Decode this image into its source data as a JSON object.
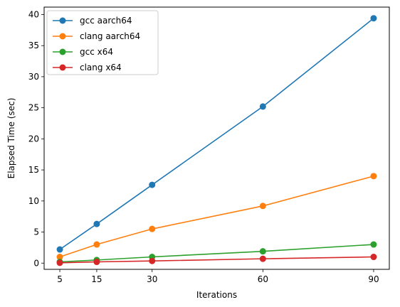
{
  "chart_data": {
    "type": "line",
    "xlabel": "Iterations",
    "ylabel": "Elapsed Time (sec)",
    "x": [
      5,
      15,
      30,
      60,
      90
    ],
    "xticks": [
      5,
      15,
      30,
      60,
      90
    ],
    "yticks": [
      0,
      5,
      10,
      15,
      20,
      25,
      30,
      35,
      40
    ],
    "xlim": [
      0.75,
      94.25
    ],
    "ylim": [
      -1.0,
      41.2
    ],
    "grid": false,
    "legend_position": "top-left",
    "series": [
      {
        "name": "gcc aarch64",
        "color": "#1f77b4",
        "values": [
          2.2,
          6.3,
          12.6,
          25.2,
          39.4
        ]
      },
      {
        "name": "clang aarch64",
        "color": "#ff7f0e",
        "values": [
          1.0,
          3.0,
          5.5,
          9.2,
          14.0
        ]
      },
      {
        "name": "gcc x64",
        "color": "#2ca02c",
        "values": [
          0.2,
          0.5,
          1.0,
          1.9,
          3.0
        ]
      },
      {
        "name": "clang x64",
        "color": "#d62728",
        "values": [
          0.05,
          0.2,
          0.35,
          0.7,
          1.0
        ]
      }
    ]
  }
}
